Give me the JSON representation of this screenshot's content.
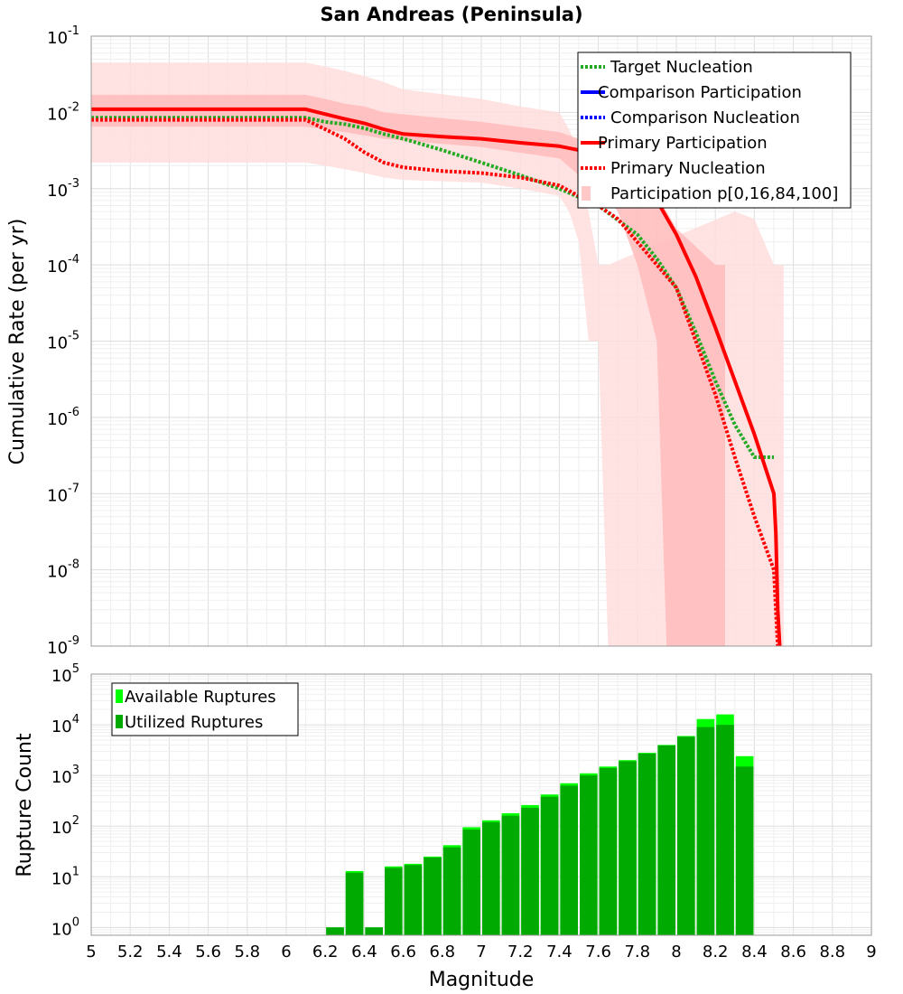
{
  "chart_data": [
    {
      "type": "line",
      "title": "San Andreas (Peninsula)",
      "xlabel": "Magnitude",
      "ylabel": "Cumulative Rate (per yr)",
      "xlim": [
        5,
        9
      ],
      "ylim": [
        1e-09,
        0.1
      ],
      "yscale": "log",
      "y_tick_exponents": [
        "-9",
        "-8",
        "-7",
        "-6",
        "-5",
        "-4",
        "-3",
        "-2",
        "-1"
      ],
      "grid": true,
      "legend_position": "top-right",
      "legend": [
        {
          "label": "Target Nucleation",
          "color": "#22aa22",
          "style": "dotted"
        },
        {
          "label": "Comparison Participation",
          "color": "#0000ff",
          "style": "solid"
        },
        {
          "label": "Comparison Nucleation",
          "color": "#0000ff",
          "style": "dotted"
        },
        {
          "label": "Primary Participation",
          "color": "#ff0000",
          "style": "solid"
        },
        {
          "label": "Primary Nucleation",
          "color": "#ff0000",
          "style": "dotted"
        },
        {
          "label": "Participation p[0,16,84,100]",
          "color": "#ffc8c8",
          "style": "fill"
        }
      ],
      "series": [
        {
          "name": "Target Nucleation",
          "color": "#22aa22",
          "style": "dotted",
          "x": [
            5.0,
            6.1,
            6.2,
            6.3,
            6.4,
            6.5,
            6.6,
            6.8,
            7.0,
            7.2,
            7.4,
            7.6,
            7.8,
            7.9,
            8.0,
            8.1,
            8.2,
            8.3,
            8.4,
            8.5
          ],
          "y": [
            0.0085,
            0.0085,
            0.0075,
            0.007,
            0.0062,
            0.0052,
            0.0045,
            0.0032,
            0.0022,
            0.0015,
            0.001,
            0.0006,
            0.00025,
            0.00012,
            5e-05,
            1.3e-05,
            3e-06,
            8e-07,
            3e-07,
            3e-07
          ]
        },
        {
          "name": "Primary Participation",
          "color": "#ff0000",
          "style": "solid",
          "x": [
            5.0,
            6.1,
            6.2,
            6.3,
            6.4,
            6.5,
            6.6,
            6.8,
            7.0,
            7.2,
            7.4,
            7.5,
            7.6,
            7.7,
            7.8,
            7.9,
            8.0,
            8.1,
            8.2,
            8.3,
            8.4,
            8.5,
            8.51,
            8.52,
            8.53
          ],
          "y": [
            0.011,
            0.011,
            0.0095,
            0.0082,
            0.0072,
            0.006,
            0.0052,
            0.0048,
            0.0045,
            0.004,
            0.0036,
            0.0032,
            0.0028,
            0.002,
            0.0013,
            0.0007,
            0.00025,
            7e-05,
            1.5e-05,
            3e-06,
            6e-07,
            1e-07,
            3e-08,
            3e-09,
            1e-09
          ]
        },
        {
          "name": "Primary Nucleation",
          "color": "#ff0000",
          "style": "dotted",
          "x": [
            5.0,
            6.1,
            6.2,
            6.3,
            6.4,
            6.5,
            6.6,
            6.8,
            7.0,
            7.2,
            7.4,
            7.5,
            7.6,
            7.7,
            7.8,
            7.9,
            8.0,
            8.1,
            8.2,
            8.3,
            8.4,
            8.5,
            8.51,
            8.52
          ],
          "y": [
            0.008,
            0.008,
            0.006,
            0.0045,
            0.003,
            0.0022,
            0.0019,
            0.0017,
            0.0016,
            0.0014,
            0.0011,
            0.0008,
            0.0006,
            0.0004,
            0.0002,
            0.0001,
            5e-05,
            1e-05,
            2e-06,
            3e-07,
            5e-08,
            1e-08,
            3e-09,
            1e-09
          ]
        }
      ],
      "bands": [
        {
          "name": "p0-p100",
          "color": "#ffdddd",
          "x": [
            5.0,
            6.1,
            6.2,
            6.3,
            6.4,
            6.5,
            6.6,
            7.0,
            7.2,
            7.4,
            7.45,
            7.5,
            7.55,
            7.6,
            7.65,
            8.3,
            8.4,
            8.5,
            8.55
          ],
          "high": [
            0.045,
            0.045,
            0.04,
            0.035,
            0.03,
            0.025,
            0.02,
            0.015,
            0.012,
            0.01,
            0.006,
            0.003,
            0.0005,
            0.0001,
            0.0001,
            0.0005,
            0.0004,
            0.0001,
            0.0001
          ],
          "low": [
            0.0022,
            0.0022,
            0.002,
            0.0018,
            0.0016,
            0.0014,
            0.0013,
            0.0012,
            0.001,
            0.0008,
            0.0005,
            0.0002,
            1e-05,
            1e-05,
            1e-09,
            1e-09,
            1e-09,
            1e-09,
            1e-09
          ]
        },
        {
          "name": "p16-p84",
          "color": "#ffbbbb",
          "x": [
            5.0,
            6.1,
            6.2,
            6.3,
            6.4,
            6.5,
            7.0,
            7.4,
            7.5,
            7.6,
            7.7,
            7.8,
            7.9,
            7.95,
            8.0,
            8.2,
            8.25
          ],
          "high": [
            0.017,
            0.017,
            0.015,
            0.013,
            0.012,
            0.01,
            0.0075,
            0.0055,
            0.0045,
            0.0035,
            0.0025,
            0.0015,
            0.0008,
            0.0005,
            0.0003,
            0.0001,
            0.0001
          ],
          "low": [
            0.0065,
            0.0065,
            0.006,
            0.0055,
            0.005,
            0.0045,
            0.0035,
            0.0025,
            0.0015,
            0.001,
            0.0005,
            0.0001,
            1e-05,
            1e-09,
            1e-09,
            1e-09,
            1e-09
          ]
        }
      ]
    },
    {
      "type": "bar",
      "xlabel": "Magnitude",
      "ylabel": "Rupture Count",
      "xlim": [
        5,
        9
      ],
      "ylim": [
        0.7,
        100000
      ],
      "yscale": "log",
      "y_tick_exponents": [
        "0",
        "1",
        "2",
        "3",
        "4",
        "5"
      ],
      "x_tick_labels": [
        "5",
        "5.2",
        "5.4",
        "5.6",
        "5.8",
        "6",
        "6.2",
        "6.4",
        "6.6",
        "6.8",
        "7",
        "7.2",
        "7.4",
        "7.6",
        "7.8",
        "8",
        "8.2",
        "8.4",
        "8.6",
        "8.8",
        "9"
      ],
      "grid": true,
      "legend_position": "top-left",
      "bin_width": 0.1,
      "legend": [
        {
          "label": "Available Ruptures",
          "color": "#00ff00"
        },
        {
          "label": "Utilized Ruptures",
          "color": "#00aa00"
        }
      ],
      "x": [
        6.25,
        6.35,
        6.45,
        6.55,
        6.65,
        6.75,
        6.85,
        6.95,
        7.05,
        7.15,
        7.25,
        7.35,
        7.45,
        7.55,
        7.65,
        7.75,
        7.85,
        7.95,
        8.05,
        8.15,
        8.25,
        8.35
      ],
      "series": [
        {
          "name": "Available Ruptures",
          "color": "#00ff00",
          "values": [
            1,
            13,
            1,
            16,
            18,
            25,
            42,
            95,
            130,
            180,
            260,
            420,
            700,
            1100,
            1500,
            2000,
            2800,
            4000,
            6000,
            13000,
            16000,
            2400
          ]
        },
        {
          "name": "Utilized Ruptures",
          "color": "#00aa00",
          "values": [
            1,
            12,
            1,
            15,
            17,
            24,
            38,
            85,
            120,
            160,
            230,
            380,
            630,
            1000,
            1400,
            1900,
            2700,
            3900,
            5800,
            9000,
            10000,
            1500
          ]
        }
      ]
    }
  ]
}
